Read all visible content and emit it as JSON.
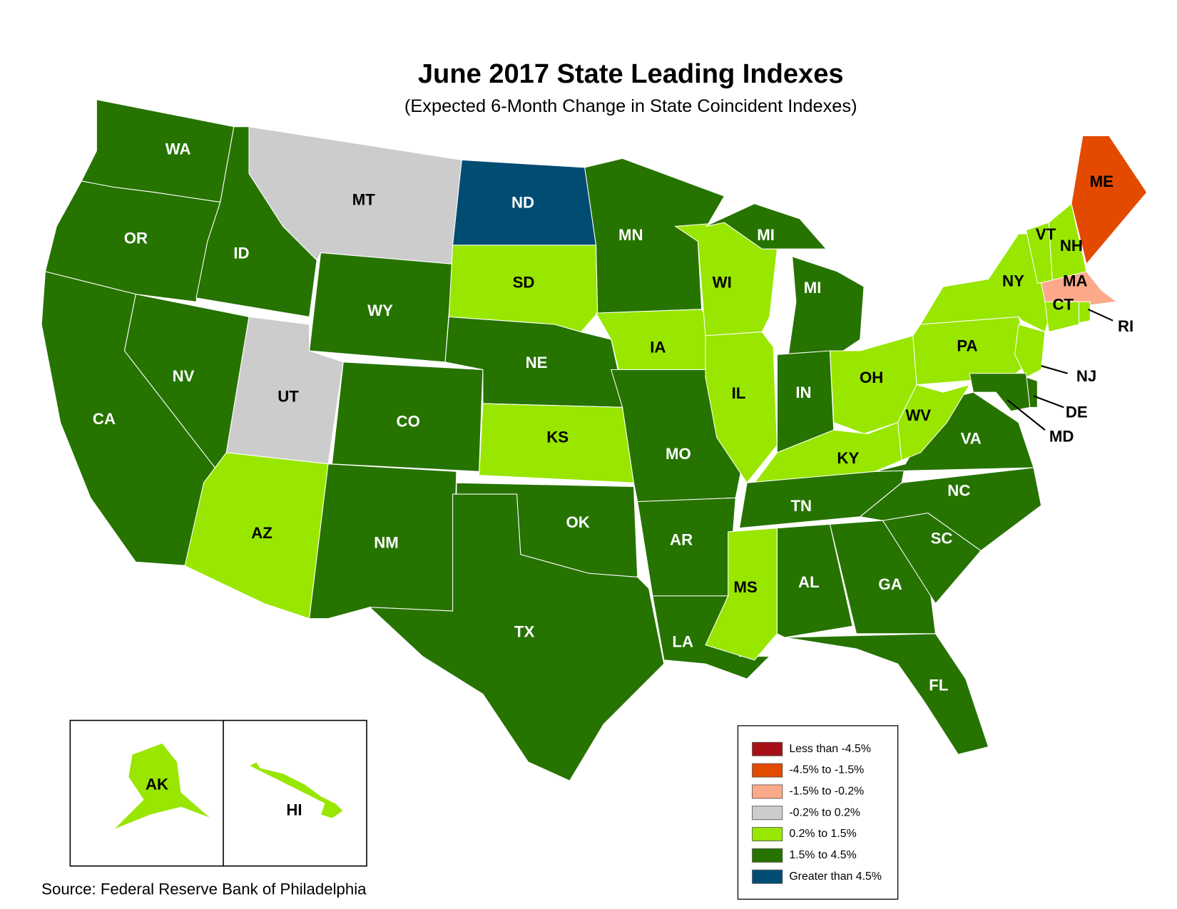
{
  "title": "June 2017 State Leading Indexes",
  "subtitle": "(Expected 6-Month Change in State Coincident Indexes)",
  "source": "Source: Federal Reserve Bank of Philadelphia",
  "legend": [
    {
      "label": "Less than -4.5%",
      "color": "#a50f15"
    },
    {
      "label": "-4.5% to -1.5%",
      "color": "#e34a00"
    },
    {
      "label": "-1.5% to -0.2%",
      "color": "#fca98a"
    },
    {
      "label": "-0.2% to 0.2%",
      "color": "#cccccc"
    },
    {
      "label": "0.2% to 1.5%",
      "color": "#99e600"
    },
    {
      "label": "1.5% to 4.5%",
      "color": "#267300"
    },
    {
      "label": "Greater than 4.5%",
      "color": "#004c73"
    }
  ],
  "states": [
    {
      "label": "WA",
      "color": "#267300"
    },
    {
      "label": "OR",
      "color": "#267300"
    },
    {
      "label": "ID",
      "color": "#267300"
    },
    {
      "label": "MT",
      "color": "#cccccc"
    },
    {
      "label": "WY",
      "color": "#267300"
    },
    {
      "label": "ND",
      "color": "#004c73"
    },
    {
      "label": "SD",
      "color": "#99e600"
    },
    {
      "label": "NE",
      "color": "#267300"
    },
    {
      "label": "CA",
      "color": "#267300"
    },
    {
      "label": "NV",
      "color": "#267300"
    },
    {
      "label": "UT",
      "color": "#cccccc"
    },
    {
      "label": "CO",
      "color": "#267300"
    },
    {
      "label": "AZ",
      "color": "#99e600"
    },
    {
      "label": "NM",
      "color": "#267300"
    },
    {
      "label": "KS",
      "color": "#99e600"
    },
    {
      "label": "OK",
      "color": "#267300"
    },
    {
      "label": "TX",
      "color": "#267300"
    },
    {
      "label": "MN",
      "color": "#267300"
    },
    {
      "label": "IA",
      "color": "#99e600"
    },
    {
      "label": "MO",
      "color": "#267300"
    },
    {
      "label": "AR",
      "color": "#267300"
    },
    {
      "label": "LA",
      "color": "#267300"
    },
    {
      "label": "WI",
      "color": "#99e600"
    },
    {
      "label": "IL",
      "color": "#99e600"
    },
    {
      "label": "MI",
      "color": "#267300"
    },
    {
      "label": "MI",
      "color": "#267300"
    },
    {
      "label": "IN",
      "color": "#267300"
    },
    {
      "label": "OH",
      "color": "#99e600"
    },
    {
      "label": "KY",
      "color": "#99e600"
    },
    {
      "label": "TN",
      "color": "#267300"
    },
    {
      "label": "MS",
      "color": "#99e600"
    },
    {
      "label": "AL",
      "color": "#267300"
    },
    {
      "label": "GA",
      "color": "#267300"
    },
    {
      "label": "FL",
      "color": "#267300"
    },
    {
      "label": "SC",
      "color": "#267300"
    },
    {
      "label": "NC",
      "color": "#267300"
    },
    {
      "label": "VA",
      "color": "#267300"
    },
    {
      "label": "WV",
      "color": "#99e600"
    },
    {
      "label": "PA",
      "color": "#99e600"
    },
    {
      "label": "NY",
      "color": "#99e600"
    },
    {
      "label": "NJ",
      "color": "#99e600"
    },
    {
      "label": "DE",
      "color": "#267300"
    },
    {
      "label": "MD",
      "color": "#267300"
    },
    {
      "label": "VT",
      "color": "#99e600"
    },
    {
      "label": "NH",
      "color": "#99e600"
    },
    {
      "label": "ME",
      "color": "#e34a00"
    },
    {
      "label": "MA",
      "color": "#fca98a"
    },
    {
      "label": "CT",
      "color": "#99e600"
    },
    {
      "label": "RI",
      "color": "#99e600"
    },
    {
      "label": "AK",
      "color": "#99e600"
    },
    {
      "label": "HI",
      "color": "#99e600"
    }
  ]
}
